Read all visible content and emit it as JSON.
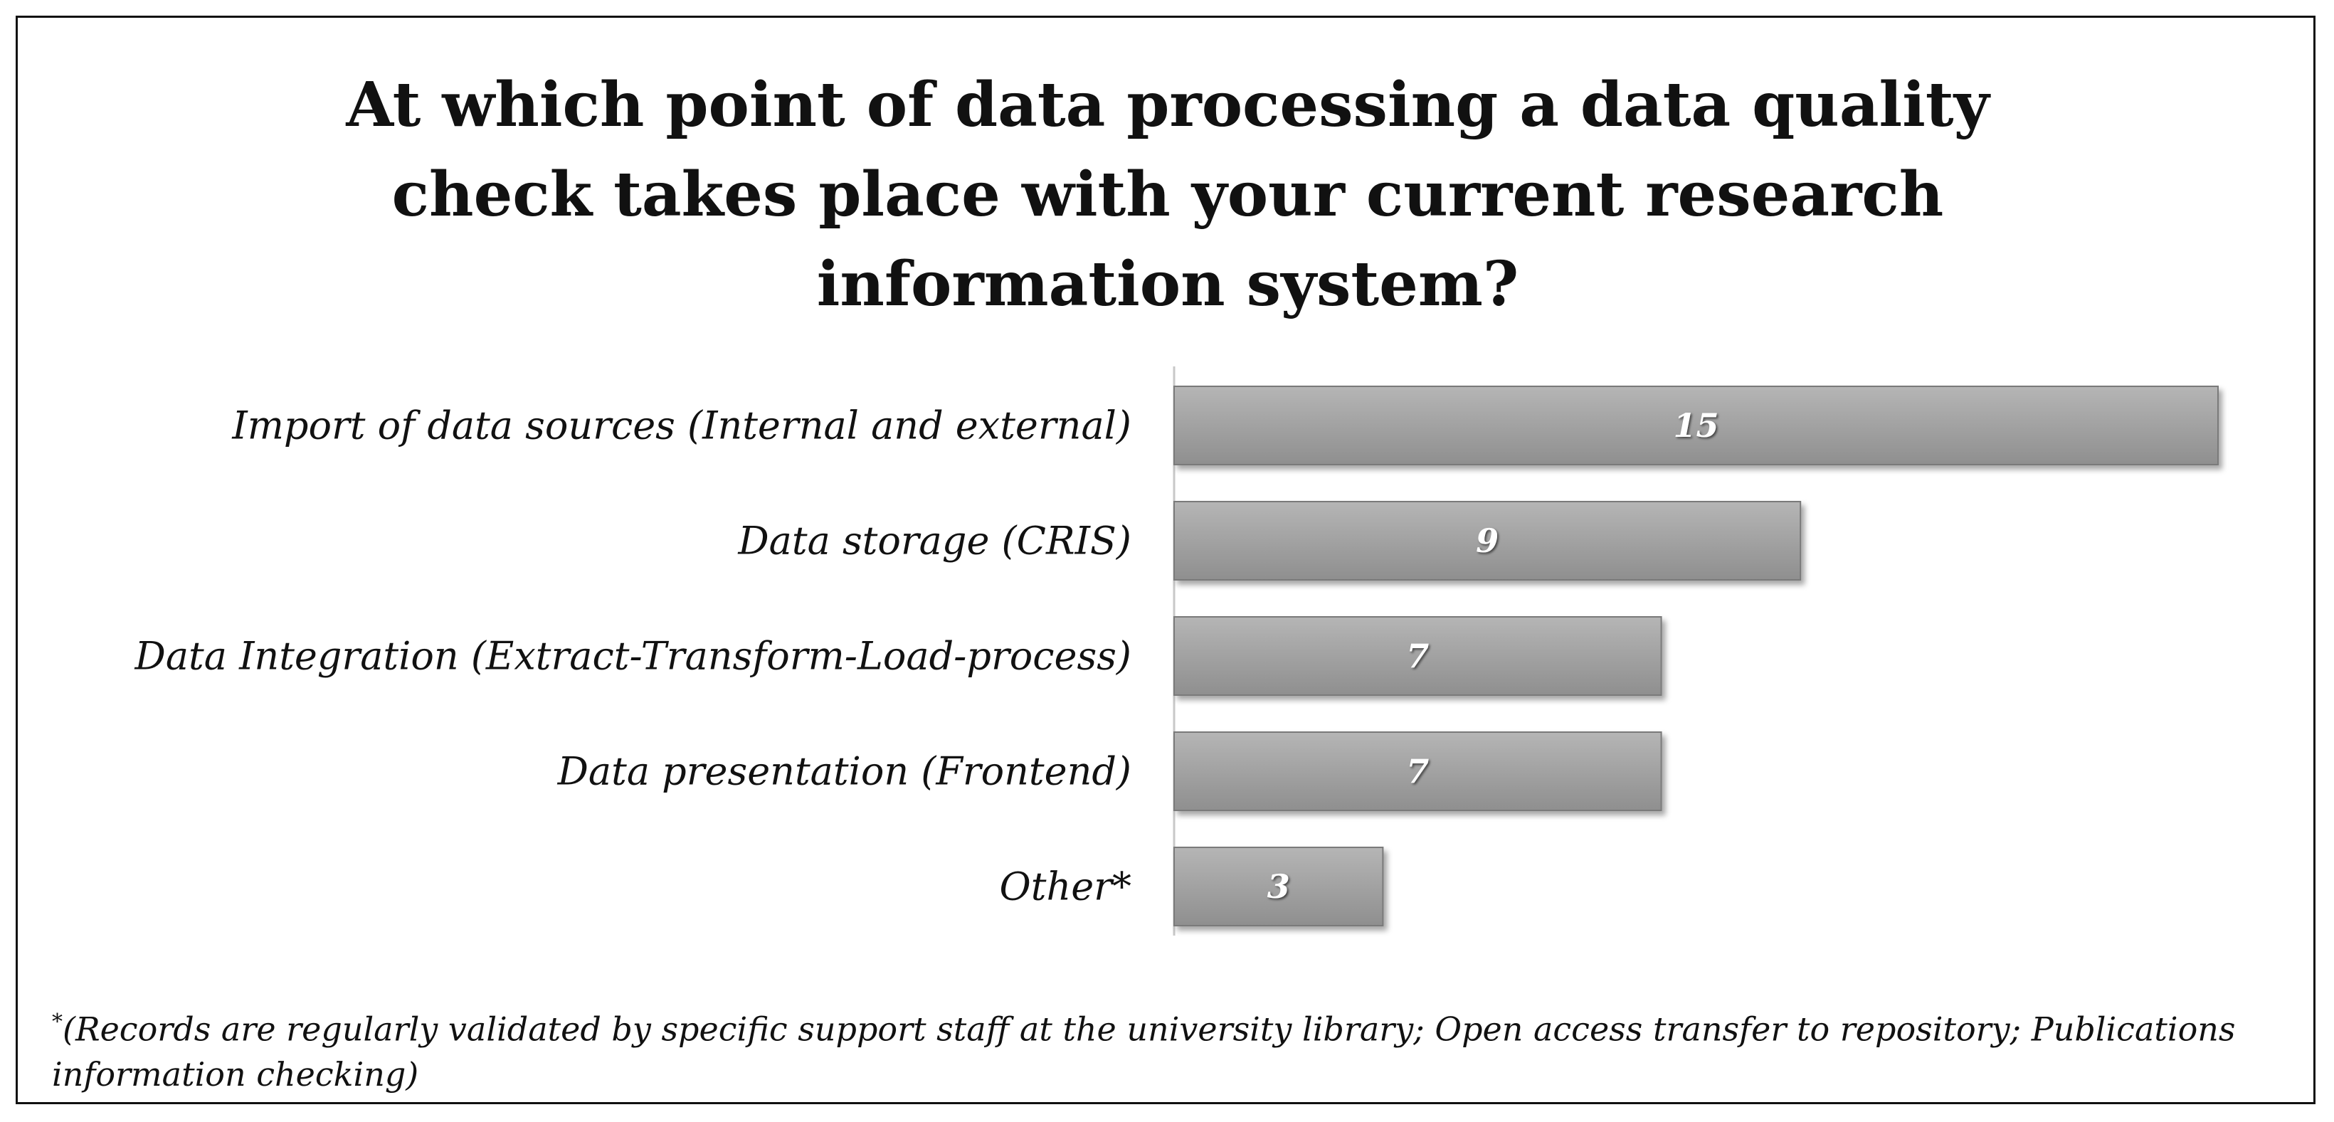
{
  "title_lines": [
    "At which point of data processing a data quality",
    "check takes place with your current research",
    "information system?"
  ],
  "footnote": {
    "marker": "*",
    "text": "(Records are regularly validated by specific support staff at the university library; Open access transfer to repository; Publications information checking)"
  },
  "colors": {
    "bar_fill_top": "#b5b5b5",
    "bar_fill_bottom": "#8f8f8f",
    "bar_stroke": "#7a7a7a",
    "value_text": "#ffffff",
    "axis": "#c8c8c8"
  },
  "chart_data": {
    "type": "bar",
    "orientation": "horizontal",
    "categories": [
      "Import of data sources (Internal and external)",
      "Data storage (CRIS)",
      "Data Integration (Extract-Transform-Load-process)",
      "Data presentation (Frontend)",
      "Other*"
    ],
    "values": [
      15,
      9,
      7,
      7,
      3
    ],
    "title": "At which point of data processing a data quality check takes place with your current research information system?",
    "xlabel": "",
    "ylabel": "",
    "xlim": [
      0,
      15
    ],
    "grid": false,
    "legend": "none",
    "data_labels": true
  }
}
